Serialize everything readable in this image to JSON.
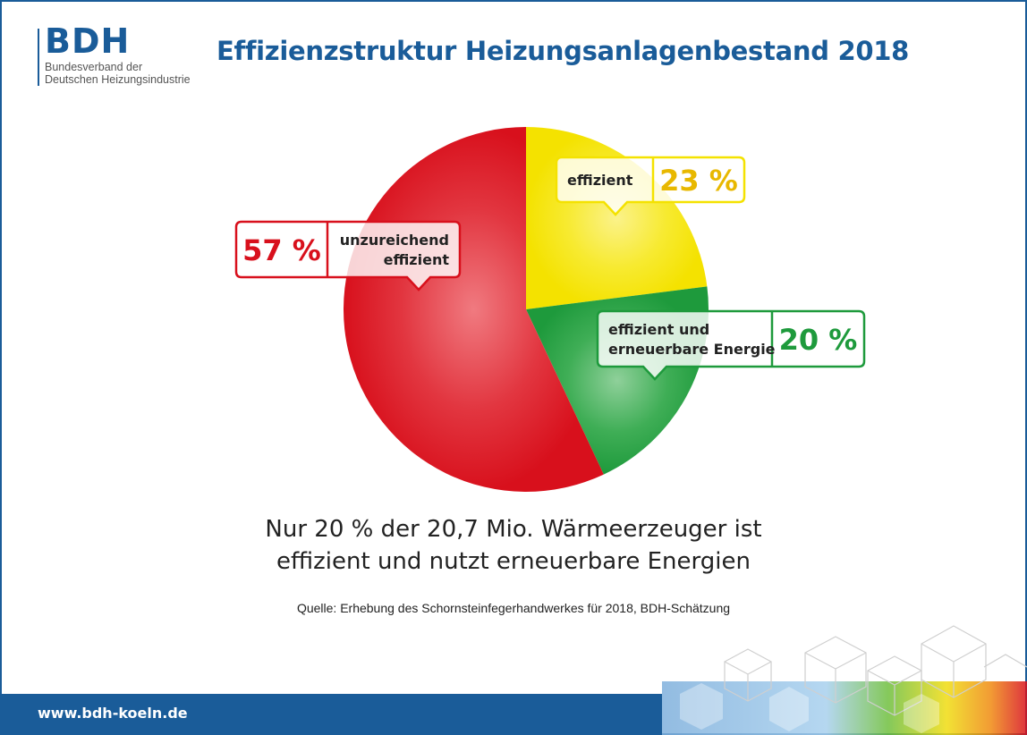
{
  "logo": {
    "name": "BDH",
    "subtitle_line1": "Bundesverband der",
    "subtitle_line2": "Deutschen Heizungsindustrie"
  },
  "title": "Effizienzstruktur Heizungsanlagenbestand 2018",
  "caption": {
    "line1": "Nur 20 % der 20,7 Mio. Wärmeerzeuger ist",
    "line2": "effizient und nutzt erneuerbare Energien"
  },
  "source": "Quelle: Erhebung des Schornsteinfegerhandwerkes für 2018, BDH-Schätzung",
  "footer": {
    "url": "www.bdh-koeln.de"
  },
  "colors": {
    "brand_blue": "#1a5c99",
    "red": "#d8101c",
    "yellow": "#f4e200",
    "green": "#1e9a3c"
  },
  "chart_data": {
    "type": "pie",
    "title": "Effizienzstruktur Heizungsanlagenbestand 2018",
    "slices": [
      {
        "label": "effizient",
        "value": 23,
        "value_label": "23 %",
        "color": "#f4e200",
        "text_color": "#e8b800"
      },
      {
        "label": "effizient und erneuerbare Energie",
        "label_lines": [
          "effizient und",
          "erneuerbare Energie"
        ],
        "value": 20,
        "value_label": "20 %",
        "color": "#1e9a3c",
        "text_color": "#1e9a3c"
      },
      {
        "label": "unzureichend effizient",
        "label_lines": [
          "unzureichend",
          "effizient"
        ],
        "value": 57,
        "value_label": "57 %",
        "color": "#d8101c",
        "text_color": "#d8101c"
      }
    ]
  }
}
